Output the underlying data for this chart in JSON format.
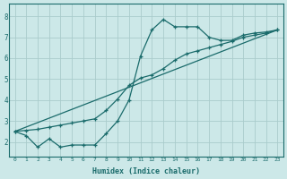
{
  "title": "",
  "xlabel": "Humidex (Indice chaleur)",
  "ylabel": "",
  "bg_color": "#cce8e8",
  "grid_color": "#aacccc",
  "line_color": "#1a6b6b",
  "xlim": [
    -0.5,
    23.5
  ],
  "ylim": [
    1.3,
    8.6
  ],
  "xticks": [
    0,
    1,
    2,
    3,
    4,
    5,
    6,
    7,
    8,
    9,
    10,
    11,
    12,
    13,
    14,
    15,
    16,
    17,
    18,
    19,
    20,
    21,
    22,
    23
  ],
  "yticks": [
    2,
    3,
    4,
    5,
    6,
    7,
    8
  ],
  "curve1_x": [
    0,
    1,
    2,
    3,
    4,
    5,
    6,
    7,
    8,
    9,
    10,
    11,
    12,
    13,
    14,
    15,
    16,
    17,
    18,
    19,
    20,
    21,
    22,
    23
  ],
  "curve1_y": [
    2.5,
    2.3,
    1.75,
    2.15,
    1.75,
    1.85,
    1.85,
    1.85,
    2.4,
    3.0,
    4.0,
    6.1,
    7.35,
    7.85,
    7.5,
    7.5,
    7.5,
    7.0,
    6.85,
    6.85,
    7.1,
    7.2,
    7.25,
    7.35
  ],
  "curve2_x": [
    0,
    1,
    2,
    3,
    4,
    5,
    6,
    7,
    8,
    9,
    10,
    11,
    12,
    13,
    14,
    15,
    16,
    17,
    18,
    19,
    20,
    21,
    22,
    23
  ],
  "curve2_y": [
    2.5,
    2.55,
    2.6,
    2.7,
    2.8,
    2.9,
    3.0,
    3.1,
    3.5,
    4.05,
    4.7,
    5.05,
    5.2,
    5.5,
    5.9,
    6.2,
    6.35,
    6.5,
    6.65,
    6.8,
    7.0,
    7.1,
    7.2,
    7.35
  ],
  "line_x": [
    0,
    23
  ],
  "line_y": [
    2.5,
    7.35
  ]
}
